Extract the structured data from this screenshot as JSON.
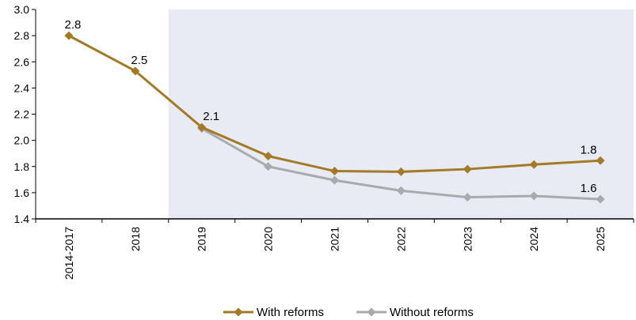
{
  "chart_data": {
    "type": "line",
    "categories": [
      "2014-2017",
      "2018",
      "2019",
      "2020",
      "2021",
      "2022",
      "2023",
      "2024",
      "2025"
    ],
    "series": [
      {
        "name": "With reforms",
        "color": "#A37A26",
        "values": [
          2.8,
          2.53,
          2.1,
          1.88,
          1.765,
          1.76,
          1.78,
          1.815,
          1.845
        ]
      },
      {
        "name": "Without reforms",
        "color": "#A8AAAD",
        "values": [
          null,
          null,
          2.09,
          1.8,
          1.695,
          1.615,
          1.565,
          1.575,
          1.55
        ]
      }
    ],
    "data_labels": [
      {
        "series": 0,
        "index": 0,
        "text": "2.8"
      },
      {
        "series": 0,
        "index": 1,
        "text": "2.5"
      },
      {
        "series": 0,
        "index": 2,
        "text": "2.1"
      },
      {
        "series": 0,
        "index": 8,
        "text": "1.8"
      },
      {
        "series": 1,
        "index": 8,
        "text": "1.6"
      }
    ],
    "y_ticks": [
      "1.4",
      "1.6",
      "1.8",
      "2.0",
      "2.2",
      "2.4",
      "2.6",
      "2.8",
      "3.0"
    ],
    "ylim": [
      1.4,
      3.0
    ],
    "shaded_region": {
      "from": "2019",
      "to": "2025",
      "color": "#E8EBF3"
    },
    "legend_position": "bottom-center",
    "title": "",
    "xlabel": "",
    "ylabel": ""
  }
}
